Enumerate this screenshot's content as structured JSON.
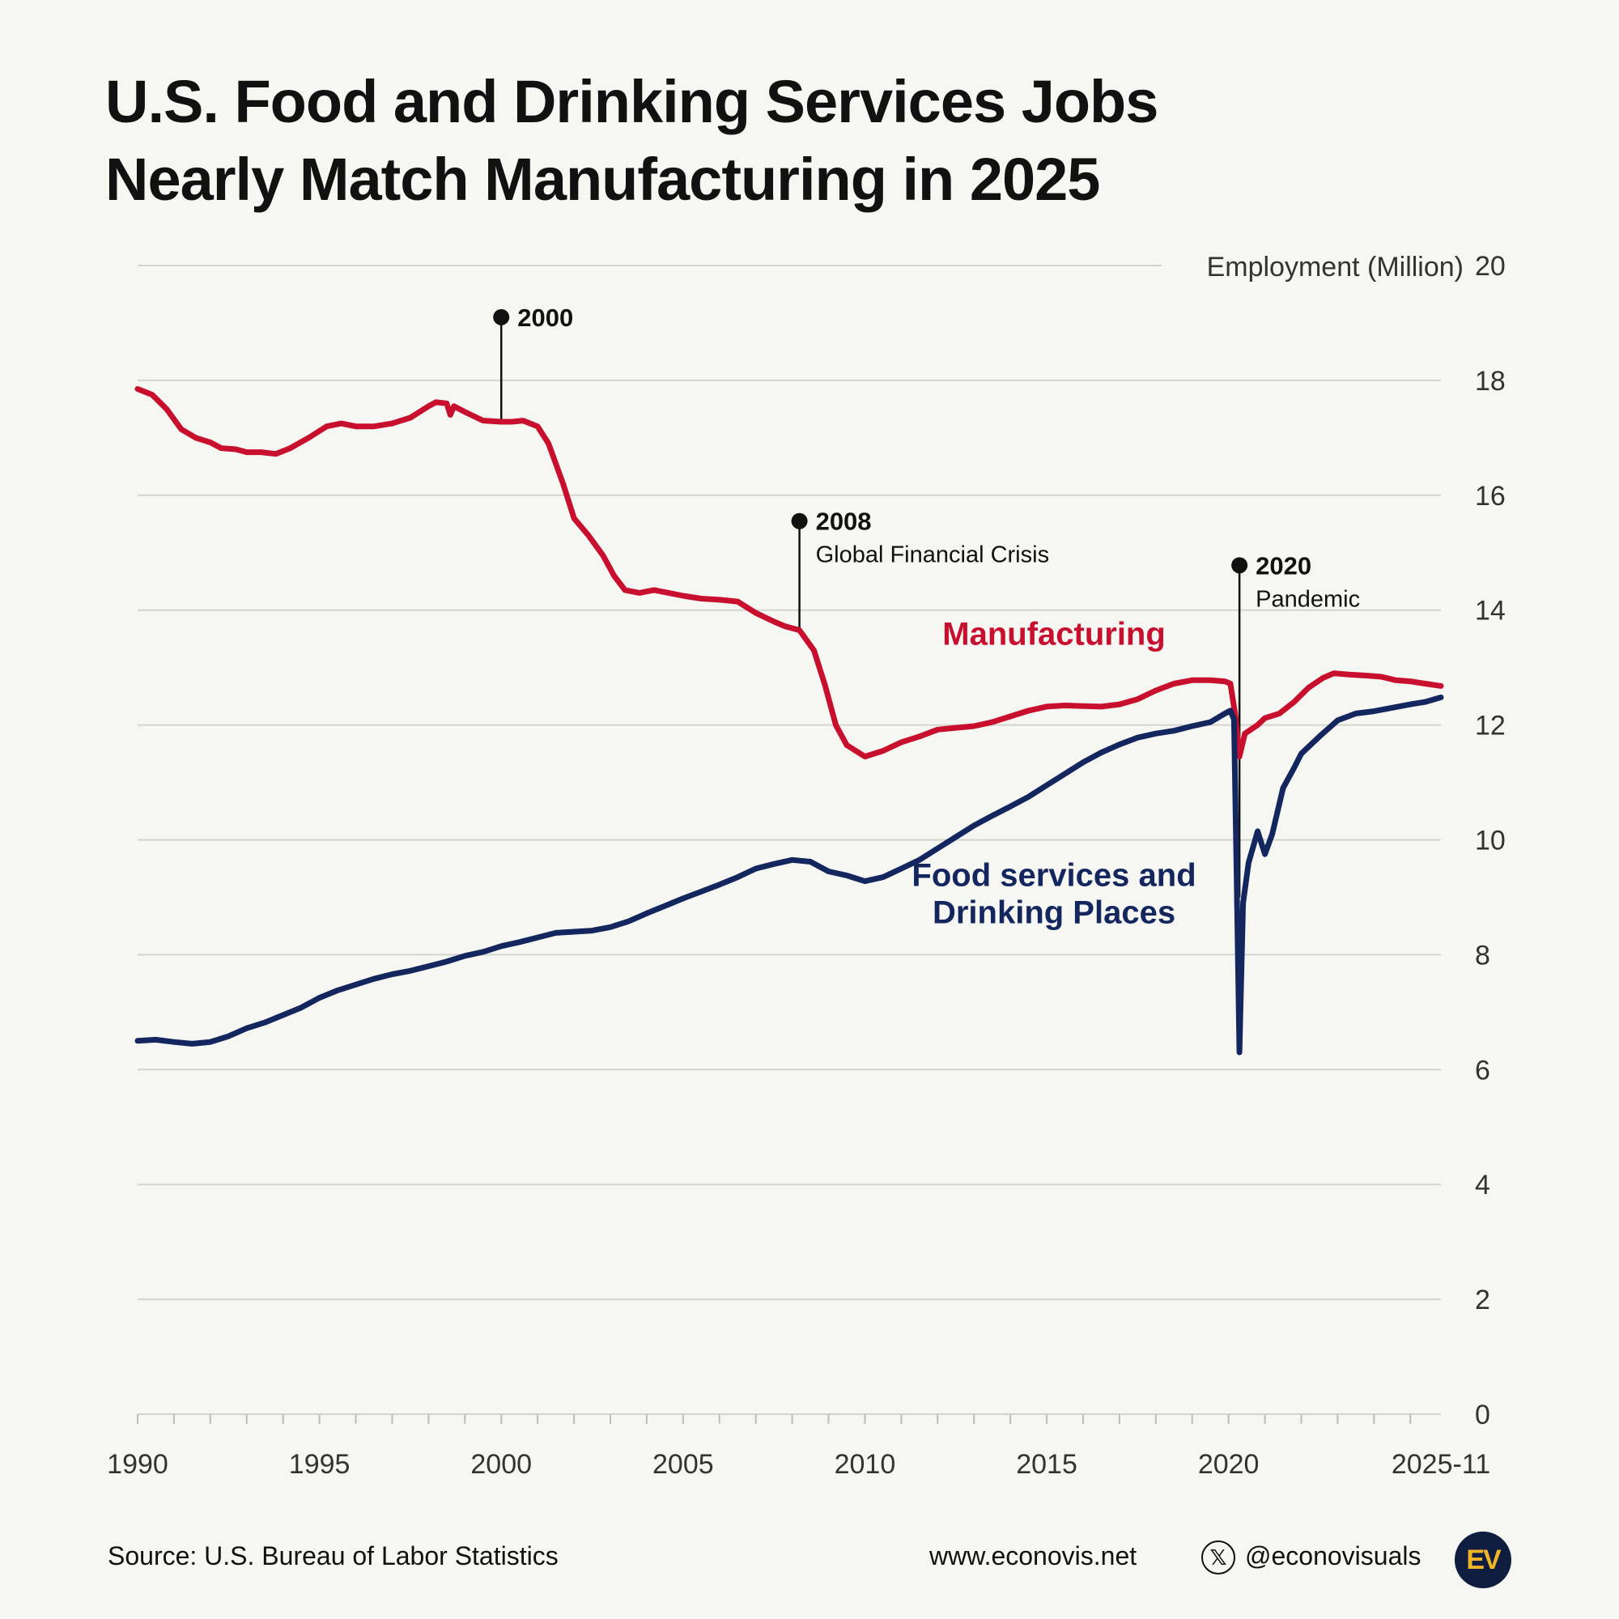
{
  "title": {
    "line1": "U.S. Food and Drinking Services Jobs",
    "line2": "Nearly Match Manufacturing in 2025"
  },
  "chart_data": {
    "type": "line",
    "ylabel": "Employment (Million)",
    "ylim": [
      0,
      20
    ],
    "yticks": [
      0,
      2,
      4,
      6,
      8,
      10,
      12,
      14,
      16,
      18,
      20
    ],
    "xlim": [
      1990,
      2025.84
    ],
    "xticks": [
      {
        "value": 1990,
        "label": "1990"
      },
      {
        "value": 1995,
        "label": "1995"
      },
      {
        "value": 2000,
        "label": "2000"
      },
      {
        "value": 2005,
        "label": "2005"
      },
      {
        "value": 2010,
        "label": "2010"
      },
      {
        "value": 2015,
        "label": "2015"
      },
      {
        "value": 2020,
        "label": "2020"
      },
      {
        "value": 2025.84,
        "label": "2025-11"
      }
    ],
    "grid": true,
    "series": [
      {
        "name": "Manufacturing",
        "color": "#c8102e",
        "label_value": {
          "x": 2015.2,
          "y": 13.4
        },
        "points": [
          [
            1990.0,
            17.85
          ],
          [
            1990.4,
            17.75
          ],
          [
            1990.8,
            17.5
          ],
          [
            1991.2,
            17.15
          ],
          [
            1991.6,
            17.0
          ],
          [
            1992.0,
            16.92
          ],
          [
            1992.3,
            16.82
          ],
          [
            1992.7,
            16.8
          ],
          [
            1993.0,
            16.75
          ],
          [
            1993.4,
            16.75
          ],
          [
            1993.8,
            16.72
          ],
          [
            1994.2,
            16.82
          ],
          [
            1994.7,
            17.0
          ],
          [
            1995.2,
            17.2
          ],
          [
            1995.6,
            17.25
          ],
          [
            1996.0,
            17.2
          ],
          [
            1996.5,
            17.2
          ],
          [
            1997.0,
            17.25
          ],
          [
            1997.5,
            17.35
          ],
          [
            1998.0,
            17.55
          ],
          [
            1998.2,
            17.62
          ],
          [
            1998.5,
            17.6
          ],
          [
            1998.6,
            17.4
          ],
          [
            1998.7,
            17.55
          ],
          [
            1999.0,
            17.45
          ],
          [
            1999.5,
            17.3
          ],
          [
            2000.0,
            17.28
          ],
          [
            2000.3,
            17.28
          ],
          [
            2000.6,
            17.3
          ],
          [
            2001.0,
            17.2
          ],
          [
            2001.3,
            16.9
          ],
          [
            2001.7,
            16.2
          ],
          [
            2002.0,
            15.6
          ],
          [
            2002.4,
            15.3
          ],
          [
            2002.8,
            14.95
          ],
          [
            2003.1,
            14.6
          ],
          [
            2003.4,
            14.35
          ],
          [
            2003.8,
            14.3
          ],
          [
            2004.2,
            14.35
          ],
          [
            2004.6,
            14.3
          ],
          [
            2005.0,
            14.25
          ],
          [
            2005.5,
            14.2
          ],
          [
            2006.0,
            14.18
          ],
          [
            2006.5,
            14.15
          ],
          [
            2007.0,
            13.95
          ],
          [
            2007.5,
            13.8
          ],
          [
            2007.8,
            13.72
          ],
          [
            2008.2,
            13.65
          ],
          [
            2008.6,
            13.3
          ],
          [
            2008.9,
            12.7
          ],
          [
            2009.2,
            12.0
          ],
          [
            2009.5,
            11.65
          ],
          [
            2010.0,
            11.45
          ],
          [
            2010.5,
            11.55
          ],
          [
            2011.0,
            11.7
          ],
          [
            2011.5,
            11.8
          ],
          [
            2012.0,
            11.92
          ],
          [
            2012.5,
            11.95
          ],
          [
            2013.0,
            11.98
          ],
          [
            2013.5,
            12.05
          ],
          [
            2014.0,
            12.15
          ],
          [
            2014.5,
            12.25
          ],
          [
            2015.0,
            12.32
          ],
          [
            2015.5,
            12.34
          ],
          [
            2016.0,
            12.33
          ],
          [
            2016.5,
            12.32
          ],
          [
            2017.0,
            12.36
          ],
          [
            2017.5,
            12.45
          ],
          [
            2018.0,
            12.6
          ],
          [
            2018.5,
            12.72
          ],
          [
            2019.0,
            12.78
          ],
          [
            2019.5,
            12.78
          ],
          [
            2019.9,
            12.76
          ],
          [
            2020.05,
            12.72
          ],
          [
            2020.18,
            12.2
          ],
          [
            2020.3,
            11.45
          ],
          [
            2020.45,
            11.85
          ],
          [
            2020.8,
            12.0
          ],
          [
            2021.0,
            12.12
          ],
          [
            2021.4,
            12.2
          ],
          [
            2021.8,
            12.4
          ],
          [
            2022.2,
            12.65
          ],
          [
            2022.6,
            12.82
          ],
          [
            2022.9,
            12.9
          ],
          [
            2023.3,
            12.88
          ],
          [
            2023.8,
            12.86
          ],
          [
            2024.2,
            12.84
          ],
          [
            2024.6,
            12.78
          ],
          [
            2025.0,
            12.76
          ],
          [
            2025.4,
            12.72
          ],
          [
            2025.84,
            12.68
          ]
        ]
      },
      {
        "name": "Food services and",
        "name_line2": "Drinking Places",
        "color": "#13265e",
        "label_value": {
          "x": 2015.2,
          "y": 9.2
        },
        "points": [
          [
            1990.0,
            6.5
          ],
          [
            1990.5,
            6.52
          ],
          [
            1991.0,
            6.48
          ],
          [
            1991.5,
            6.45
          ],
          [
            1992.0,
            6.48
          ],
          [
            1992.5,
            6.58
          ],
          [
            1993.0,
            6.72
          ],
          [
            1993.5,
            6.82
          ],
          [
            1994.0,
            6.95
          ],
          [
            1994.5,
            7.08
          ],
          [
            1995.0,
            7.25
          ],
          [
            1995.5,
            7.38
          ],
          [
            1996.0,
            7.48
          ],
          [
            1996.5,
            7.58
          ],
          [
            1997.0,
            7.66
          ],
          [
            1997.5,
            7.72
          ],
          [
            1998.0,
            7.8
          ],
          [
            1998.5,
            7.88
          ],
          [
            1999.0,
            7.98
          ],
          [
            1999.5,
            8.05
          ],
          [
            2000.0,
            8.15
          ],
          [
            2000.5,
            8.22
          ],
          [
            2001.0,
            8.3
          ],
          [
            2001.5,
            8.38
          ],
          [
            2002.0,
            8.4
          ],
          [
            2002.5,
            8.42
          ],
          [
            2003.0,
            8.48
          ],
          [
            2003.5,
            8.58
          ],
          [
            2004.0,
            8.72
          ],
          [
            2004.5,
            8.85
          ],
          [
            2005.0,
            8.98
          ],
          [
            2005.5,
            9.1
          ],
          [
            2006.0,
            9.22
          ],
          [
            2006.5,
            9.35
          ],
          [
            2007.0,
            9.5
          ],
          [
            2007.5,
            9.58
          ],
          [
            2008.0,
            9.65
          ],
          [
            2008.5,
            9.62
          ],
          [
            2009.0,
            9.45
          ],
          [
            2009.5,
            9.38
          ],
          [
            2010.0,
            9.28
          ],
          [
            2010.5,
            9.35
          ],
          [
            2011.0,
            9.5
          ],
          [
            2011.5,
            9.65
          ],
          [
            2012.0,
            9.85
          ],
          [
            2012.5,
            10.05
          ],
          [
            2013.0,
            10.25
          ],
          [
            2013.5,
            10.42
          ],
          [
            2014.0,
            10.58
          ],
          [
            2014.5,
            10.75
          ],
          [
            2015.0,
            10.95
          ],
          [
            2015.5,
            11.15
          ],
          [
            2016.0,
            11.35
          ],
          [
            2016.5,
            11.52
          ],
          [
            2017.0,
            11.66
          ],
          [
            2017.5,
            11.78
          ],
          [
            2018.0,
            11.85
          ],
          [
            2018.5,
            11.9
          ],
          [
            2019.0,
            11.98
          ],
          [
            2019.5,
            12.05
          ],
          [
            2019.9,
            12.2
          ],
          [
            2020.05,
            12.25
          ],
          [
            2020.15,
            12.1
          ],
          [
            2020.22,
            9.5
          ],
          [
            2020.3,
            6.3
          ],
          [
            2020.4,
            8.9
          ],
          [
            2020.55,
            9.6
          ],
          [
            2020.8,
            10.15
          ],
          [
            2021.0,
            9.75
          ],
          [
            2021.2,
            10.1
          ],
          [
            2021.5,
            10.9
          ],
          [
            2021.8,
            11.25
          ],
          [
            2022.0,
            11.5
          ],
          [
            2022.5,
            11.8
          ],
          [
            2023.0,
            12.08
          ],
          [
            2023.5,
            12.2
          ],
          [
            2024.0,
            12.24
          ],
          [
            2024.5,
            12.3
          ],
          [
            2025.0,
            12.36
          ],
          [
            2025.4,
            12.4
          ],
          [
            2025.84,
            12.48
          ]
        ]
      }
    ],
    "annotations": [
      {
        "year": "2000",
        "subtitle": "",
        "x": 2000.0,
        "y_top": 19.1,
        "y_bottom": 17.3
      },
      {
        "year": "2008",
        "subtitle": "Global Financial Crisis",
        "x": 2008.2,
        "y_top": 15.55,
        "y_bottom": 13.65
      },
      {
        "year": "2020",
        "subtitle": "Pandemic",
        "x": 2020.3,
        "y_top": 14.78,
        "y_bottom": 9.0
      }
    ]
  },
  "footer": {
    "source": "Source: U.S. Bureau of Labor Statistics",
    "website": "www.econovis.net",
    "x_icon": "x-icon",
    "x_glyph": "𝕏",
    "handle": "@econovisuals",
    "logo_text": "EV"
  }
}
